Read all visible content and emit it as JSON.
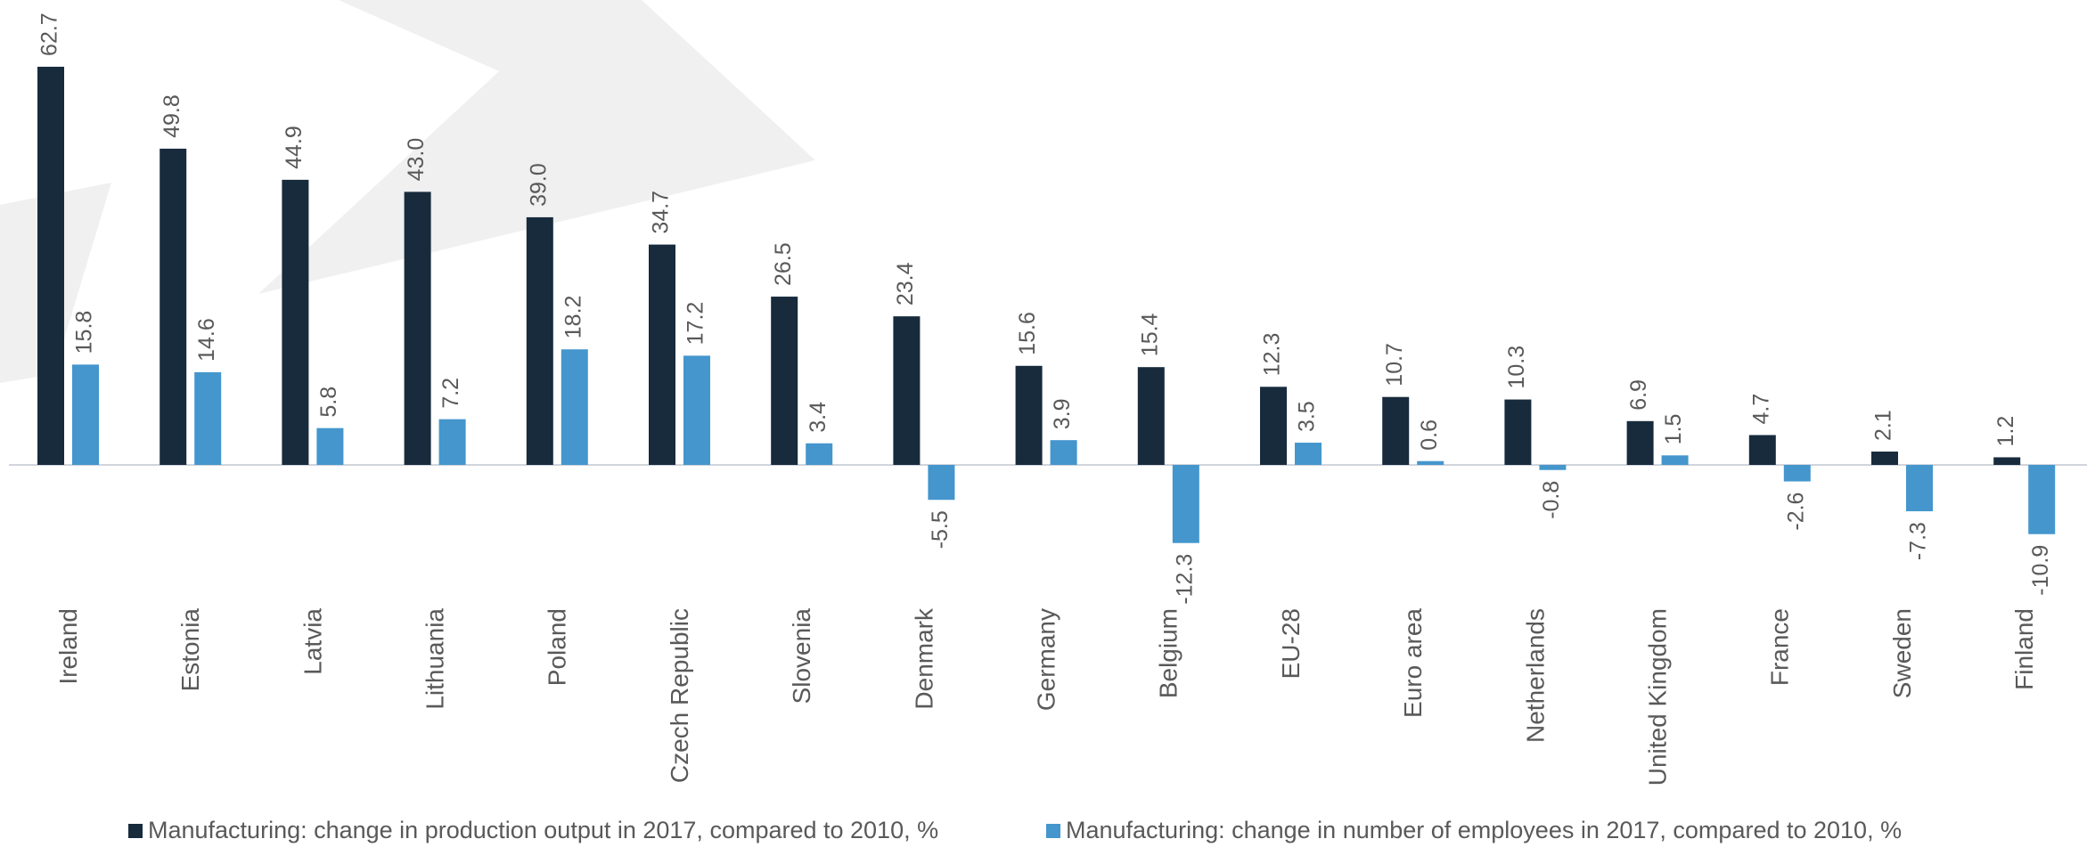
{
  "chart_data": {
    "type": "bar",
    "categories": [
      "Ireland",
      "Estonia",
      "Latvia",
      "Lithuania",
      "Poland",
      "Czech Republic",
      "Slovenia",
      "Denmark",
      "Germany",
      "Belgium",
      "EU-28",
      "Euro area",
      "Netherlands",
      "United Kingdom",
      "France",
      "Sweden",
      "Finland"
    ],
    "series": [
      {
        "name": "Manufacturing: change in production output in 2017, compared to 2010, %",
        "color": "#172b3c",
        "values": [
          62.7,
          49.8,
          44.9,
          43.0,
          39.0,
          34.7,
          26.5,
          23.4,
          15.6,
          15.4,
          12.3,
          10.7,
          10.3,
          6.9,
          4.7,
          2.1,
          1.2
        ],
        "value_labels": [
          "62.7",
          "49.8",
          "44.9",
          "43.0",
          "39.0",
          "34.7",
          "26.5",
          "23.4",
          "15.6",
          "15.4",
          "12.3",
          "10.7",
          "10.3",
          "6.9",
          "4.7",
          "2.1",
          "1.2"
        ]
      },
      {
        "name": "Manufacturing: change in number of employees in 2017, compared to 2010, %",
        "color": "#4496cd",
        "values": [
          15.8,
          14.6,
          5.8,
          7.2,
          18.2,
          17.2,
          3.4,
          -5.5,
          3.9,
          -12.3,
          3.5,
          0.6,
          -0.8,
          1.5,
          -2.6,
          -7.3,
          -10.9
        ],
        "value_labels": [
          "15.8",
          "14.6",
          "5.8",
          "7.2",
          "18.2",
          "17.2",
          "3.4",
          "-5.5",
          "3.9",
          "-12.3",
          "3.5",
          "0.6",
          "-0.8",
          "1.5",
          "-2.6",
          "-7.3",
          "-10.9"
        ]
      }
    ]
  }
}
